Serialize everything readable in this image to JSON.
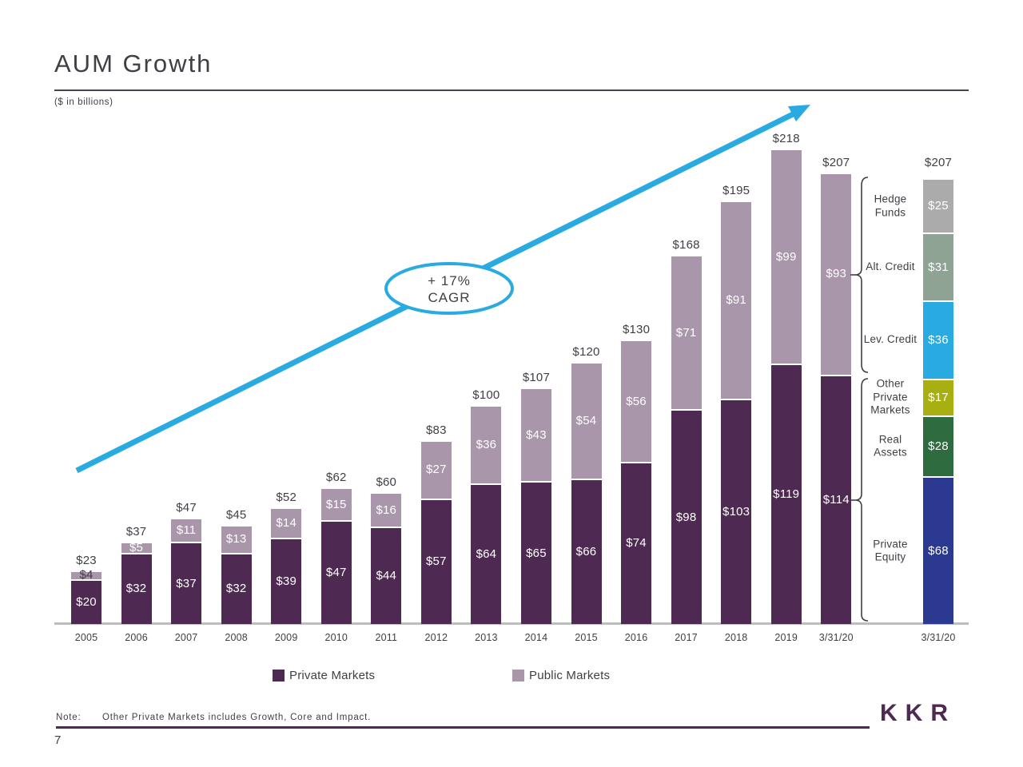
{
  "slide": {
    "title": "AUM Growth",
    "subtitle": "($ in billions)",
    "note_label": "Note:",
    "note_text": "Other Private Markets includes Growth, Core and Impact.",
    "page_number": "7",
    "logo": "KKR",
    "brand_color": "#4E2A52"
  },
  "legend": [
    {
      "label": "Private Markets",
      "color": "#4E2A52"
    },
    {
      "label": "Public Markets",
      "color": "#A996AA"
    }
  ],
  "chart_data": {
    "type": "bar",
    "stacked": true,
    "title": "AUM Growth",
    "units": "($ in billions)",
    "value_prefix": "$",
    "grid": false,
    "legend_position": "bottom",
    "categories": [
      "2005",
      "2006",
      "2007",
      "2008",
      "2009",
      "2010",
      "2011",
      "2012",
      "2013",
      "2014",
      "2015",
      "2016",
      "2017",
      "2018",
      "2019",
      "3/31/20"
    ],
    "series": [
      {
        "name": "Private Markets",
        "color": "#4E2A52",
        "values": [
          20,
          32,
          37,
          32,
          39,
          47,
          44,
          57,
          64,
          65,
          66,
          74,
          98,
          103,
          119,
          114
        ]
      },
      {
        "name": "Public Markets",
        "color": "#A996AA",
        "values": [
          4,
          5,
          11,
          13,
          14,
          15,
          16,
          27,
          36,
          43,
          54,
          56,
          71,
          91,
          99,
          93
        ]
      }
    ],
    "totals": [
      23,
      37,
      47,
      45,
      52,
      62,
      60,
      83,
      100,
      107,
      120,
      130,
      168,
      195,
      218,
      207
    ],
    "annotation": {
      "line1": "+ 17%",
      "line2": "CAGR",
      "arrow_color": "#29ABE2"
    },
    "breakdown": {
      "category": "3/31/20",
      "total": 207,
      "segments_top_to_bottom": [
        {
          "label": "Hedge Funds",
          "value": 25,
          "color": "#ABABAB",
          "group": "Public Markets"
        },
        {
          "label": "Alt. Credit",
          "value": 31,
          "color": "#8EA394",
          "group": "Public Markets"
        },
        {
          "label": "Lev. Credit",
          "value": 36,
          "color": "#29ABE2",
          "group": "Public Markets"
        },
        {
          "label": "Other Private Markets",
          "value": 17,
          "color": "#A8B011",
          "group": "Private Markets"
        },
        {
          "label": "Real Assets",
          "value": 28,
          "color": "#2E6B3F",
          "group": "Private Markets"
        },
        {
          "label": "Private Equity",
          "value": 68,
          "color": "#2B3990",
          "group": "Private Markets"
        }
      ]
    }
  }
}
